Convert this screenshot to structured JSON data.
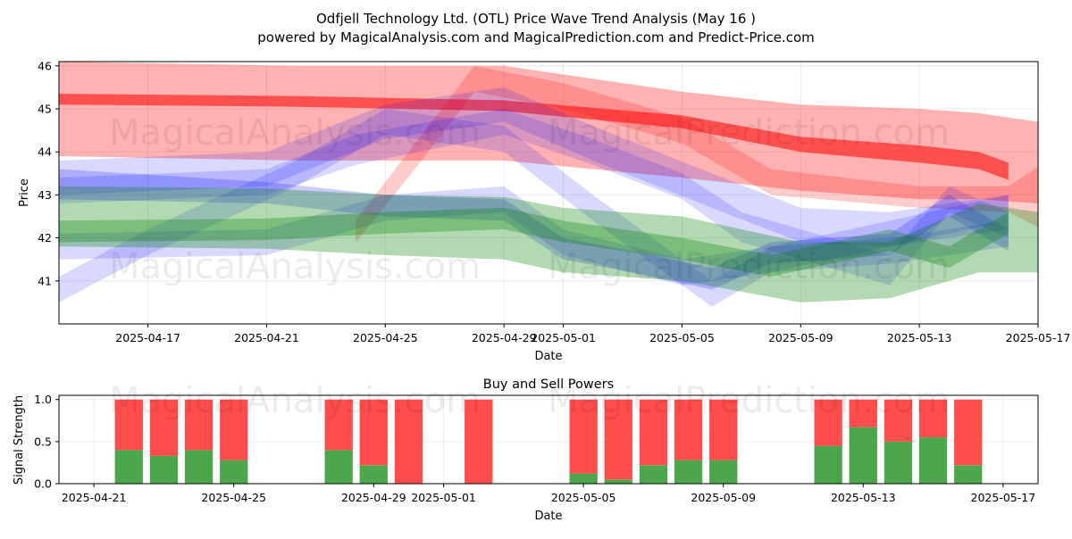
{
  "figure": {
    "title_line1": "Odfjell Technology Ltd. (OTL) Price Wave Trend Analysis (May 16 )",
    "title_line2": "powered by MagicalAnalysis.com and MagicalPrediction.com and Predict-Price.com",
    "watermarks": [
      "MagicalAnalysis.com",
      "MagicalPrediction.com"
    ]
  },
  "chart_data": [
    {
      "type": "area",
      "title": "",
      "xlabel": "Date",
      "ylabel": "Price",
      "xlim": [
        "2025-04-14",
        "2025-05-17"
      ],
      "ylim": [
        40.0,
        46.1
      ],
      "x_ticks": [
        "2025-04-17",
        "2025-04-21",
        "2025-04-25",
        "2025-04-29",
        "2025-05-01",
        "2025-05-05",
        "2025-05-09",
        "2025-05-13",
        "2025-05-17"
      ],
      "y_ticks": [
        41,
        42,
        43,
        44,
        45,
        46
      ],
      "grid": true,
      "colors": {
        "red": "#ff0000",
        "blue": "#0000ff",
        "green": "#008000"
      },
      "bands": [
        {
          "color": "red",
          "opacity": 0.3,
          "x": [
            "2025-04-14",
            "2025-04-22",
            "2025-04-29",
            "2025-05-05",
            "2025-05-09",
            "2025-05-13",
            "2025-05-15",
            "2025-05-17"
          ],
          "upper": [
            46.1,
            46.0,
            46.0,
            45.4,
            45.1,
            45.0,
            44.9,
            44.7
          ],
          "lower": [
            43.9,
            43.8,
            43.8,
            43.4,
            43.1,
            42.9,
            42.9,
            42.8
          ]
        },
        {
          "color": "red",
          "opacity": 0.55,
          "x": [
            "2025-04-14",
            "2025-04-22",
            "2025-04-29",
            "2025-05-05",
            "2025-05-09",
            "2025-05-13",
            "2025-05-15",
            "2025-05-16"
          ],
          "upper": [
            45.35,
            45.3,
            45.2,
            44.85,
            44.35,
            44.15,
            44.0,
            43.75
          ],
          "lower": [
            45.1,
            45.05,
            44.95,
            44.55,
            44.0,
            43.75,
            43.6,
            43.35
          ]
        },
        {
          "color": "red",
          "opacity": 0.2,
          "x": [
            "2025-04-24",
            "2025-04-26",
            "2025-04-28",
            "2025-05-01",
            "2025-05-05",
            "2025-05-08",
            "2025-05-13",
            "2025-05-16",
            "2025-05-17"
          ],
          "upper": [
            42.4,
            44.2,
            46.0,
            45.6,
            44.8,
            43.6,
            43.2,
            43.2,
            43.65
          ],
          "lower": [
            41.9,
            43.6,
            45.4,
            45.0,
            44.2,
            43.0,
            42.7,
            42.6,
            42.25
          ]
        },
        {
          "color": "blue",
          "opacity": 0.15,
          "x": [
            "2025-04-14",
            "2025-04-21",
            "2025-04-25",
            "2025-04-29",
            "2025-05-02",
            "2025-05-06",
            "2025-05-09",
            "2025-05-12",
            "2025-05-16"
          ],
          "upper": [
            43.8,
            44.0,
            45.1,
            45.5,
            44.6,
            43.5,
            42.7,
            42.6,
            43.0
          ],
          "lower": [
            43.0,
            43.2,
            44.3,
            44.7,
            43.8,
            42.7,
            41.9,
            41.8,
            42.2
          ]
        },
        {
          "color": "blue",
          "opacity": 0.15,
          "x": [
            "2025-04-14",
            "2025-04-21",
            "2025-04-24",
            "2025-04-29",
            "2025-05-02",
            "2025-05-05",
            "2025-05-07",
            "2025-05-12",
            "2025-05-14",
            "2025-05-16"
          ],
          "upper": [
            43.4,
            43.6,
            44.4,
            45.0,
            44.3,
            43.5,
            42.6,
            41.6,
            43.2,
            42.6
          ],
          "lower": [
            42.8,
            43.0,
            43.7,
            44.4,
            43.7,
            42.9,
            41.9,
            40.9,
            42.6,
            42.0
          ]
        },
        {
          "color": "blue",
          "opacity": 0.15,
          "x": [
            "2025-04-14",
            "2025-04-17",
            "2025-04-22",
            "2025-04-25",
            "2025-04-29",
            "2025-05-02",
            "2025-05-06",
            "2025-05-08",
            "2025-05-12",
            "2025-05-16"
          ],
          "upper": [
            41.1,
            42.2,
            43.8,
            45.0,
            44.6,
            43.0,
            41.0,
            41.8,
            42.4,
            43.0
          ],
          "lower": [
            40.5,
            41.6,
            43.2,
            44.4,
            44.0,
            42.4,
            40.4,
            41.2,
            41.8,
            42.4
          ]
        },
        {
          "color": "blue",
          "opacity": 0.15,
          "x": [
            "2025-04-14",
            "2025-04-21",
            "2025-04-25",
            "2025-04-29",
            "2025-05-01",
            "2025-05-05",
            "2025-05-08",
            "2025-05-12",
            "2025-05-16"
          ],
          "upper": [
            42.1,
            42.2,
            43.0,
            43.2,
            42.2,
            41.5,
            41.8,
            42.0,
            42.4
          ],
          "lower": [
            41.5,
            41.6,
            42.4,
            42.6,
            41.6,
            40.9,
            41.2,
            41.4,
            41.8
          ]
        },
        {
          "color": "blue",
          "opacity": 0.2,
          "x": [
            "2025-04-14",
            "2025-04-21",
            "2025-04-25",
            "2025-04-29",
            "2025-05-01",
            "2025-05-04",
            "2025-05-06",
            "2025-05-08",
            "2025-05-12",
            "2025-05-14",
            "2025-05-16"
          ],
          "upper": [
            43.6,
            43.3,
            43.0,
            42.9,
            42.0,
            41.6,
            41.3,
            41.9,
            42.1,
            43.0,
            42.2
          ],
          "lower": [
            42.9,
            42.8,
            42.5,
            42.4,
            41.5,
            41.1,
            40.8,
            41.4,
            41.6,
            42.5,
            41.7
          ]
        },
        {
          "color": "green",
          "opacity": 0.3,
          "x": [
            "2025-04-14",
            "2025-04-21",
            "2025-04-25",
            "2025-04-29",
            "2025-05-01",
            "2025-05-05",
            "2025-05-09",
            "2025-05-12",
            "2025-05-15",
            "2025-05-17"
          ],
          "upper": [
            43.2,
            43.15,
            43.0,
            42.95,
            42.7,
            42.5,
            41.9,
            41.9,
            42.8,
            42.6
          ],
          "lower": [
            41.8,
            41.75,
            41.6,
            41.5,
            41.2,
            41.0,
            40.5,
            40.6,
            41.2,
            41.2
          ]
        },
        {
          "color": "green",
          "opacity": 0.3,
          "x": [
            "2025-04-14",
            "2025-04-21",
            "2025-04-25",
            "2025-04-29",
            "2025-05-01",
            "2025-05-05",
            "2025-05-08",
            "2025-05-12",
            "2025-05-14",
            "2025-05-16"
          ],
          "upper": [
            42.4,
            42.45,
            42.6,
            42.7,
            42.4,
            42.0,
            41.6,
            42.2,
            41.8,
            42.6
          ],
          "lower": [
            41.9,
            41.95,
            42.1,
            42.2,
            41.9,
            41.5,
            41.1,
            41.7,
            41.3,
            42.1
          ]
        }
      ]
    },
    {
      "type": "bar",
      "title": "Buy and Sell Powers",
      "xlabel": "Date",
      "ylabel": "Signal Strength",
      "xlim": [
        "2025-04-20",
        "2025-05-18"
      ],
      "ylim": [
        0,
        1.05
      ],
      "x_ticks": [
        "2025-04-21",
        "2025-04-25",
        "2025-04-29",
        "2025-05-01",
        "2025-05-05",
        "2025-05-09",
        "2025-05-13",
        "2025-05-17"
      ],
      "y_ticks": [
        0.0,
        0.5,
        1.0
      ],
      "grid": true,
      "colors": {
        "buy": "#4ca64c",
        "sell": "#ff4d4d"
      },
      "categories": [
        "2025-04-22",
        "2025-04-23",
        "2025-04-24",
        "2025-04-25",
        "2025-04-28",
        "2025-04-29",
        "2025-04-30",
        "2025-05-02",
        "2025-05-05",
        "2025-05-06",
        "2025-05-07",
        "2025-05-08",
        "2025-05-09",
        "2025-05-12",
        "2025-05-13",
        "2025-05-14",
        "2025-05-15",
        "2025-05-16"
      ],
      "buy": [
        0.4,
        0.33,
        0.4,
        0.28,
        0.4,
        0.22,
        0.0,
        0.0,
        0.12,
        0.05,
        0.22,
        0.28,
        0.28,
        0.45,
        0.67,
        0.5,
        0.55,
        0.22
      ],
      "sell": [
        0.6,
        0.67,
        0.6,
        0.72,
        0.6,
        0.78,
        1.0,
        1.0,
        0.88,
        0.95,
        0.78,
        0.72,
        0.72,
        0.55,
        0.33,
        0.5,
        0.45,
        0.78
      ]
    }
  ]
}
